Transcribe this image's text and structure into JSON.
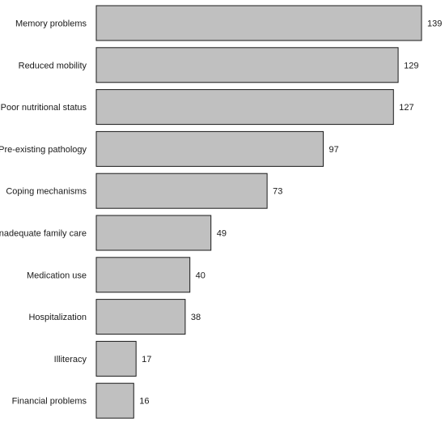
{
  "chart_data": {
    "type": "bar",
    "orientation": "horizontal",
    "title": "",
    "xlabel": "",
    "ylabel": "",
    "categories": [
      "Memory problems",
      "Reduced mobility",
      "Poor nutritional status",
      "Pre-existing pathology",
      "Coping mechanisms",
      "Inadequate family care",
      "Medication use",
      "Hospitalization",
      "Illiteracy",
      "Financial problems"
    ],
    "values": [
      139,
      129,
      127,
      97,
      73,
      49,
      40,
      38,
      17,
      16
    ],
    "xlim": [
      0,
      139
    ],
    "grid": false,
    "legend": "none",
    "bar_color": "#c0c0c0",
    "bar_edge_color": "#1a1a1a"
  }
}
